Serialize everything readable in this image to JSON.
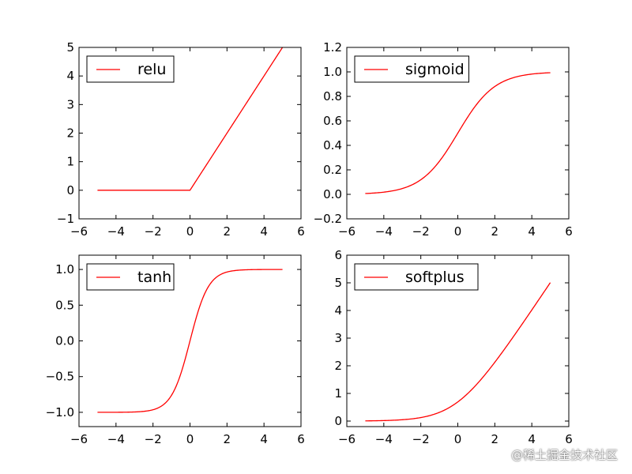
{
  "colors": {
    "line": "#ff0000",
    "axis": "#000000",
    "background": "#ffffff"
  },
  "watermark": "@稀土掘金技术社区",
  "chart_data": [
    {
      "type": "line",
      "function": "relu",
      "title": "",
      "xlabel": "",
      "ylabel": "",
      "xlim": [
        -6,
        6
      ],
      "ylim": [
        -1,
        5
      ],
      "xticks": [
        -6,
        -4,
        -2,
        0,
        2,
        4,
        6
      ],
      "xtick_labels": [
        "−6",
        "−4",
        "−2",
        "0",
        "2",
        "4",
        "6"
      ],
      "yticks": [
        -1,
        0,
        1,
        2,
        3,
        4,
        5
      ],
      "ytick_labels": [
        "−1",
        "0",
        "1",
        "2",
        "3",
        "4",
        "5"
      ],
      "x_range": [
        -5,
        5
      ],
      "series": [
        {
          "name": "relu",
          "x": [
            -5,
            0,
            5
          ],
          "y": [
            0,
            0,
            5
          ]
        }
      ],
      "legend": {
        "label": "relu",
        "position": "upper-left"
      },
      "grid": false
    },
    {
      "type": "line",
      "function": "sigmoid",
      "title": "",
      "xlabel": "",
      "ylabel": "",
      "xlim": [
        -6,
        6
      ],
      "ylim": [
        -0.2,
        1.2
      ],
      "xticks": [
        -6,
        -4,
        -2,
        0,
        2,
        4,
        6
      ],
      "xtick_labels": [
        "−6",
        "−4",
        "−2",
        "0",
        "2",
        "4",
        "6"
      ],
      "yticks": [
        -0.2,
        0.0,
        0.2,
        0.4,
        0.6,
        0.8,
        1.0,
        1.2
      ],
      "ytick_labels": [
        "−0.2",
        "0.0",
        "0.2",
        "0.4",
        "0.6",
        "0.8",
        "1.0",
        "1.2"
      ],
      "x_range": [
        -5,
        5
      ],
      "series": [
        {
          "name": "sigmoid",
          "x": [
            -5,
            -2,
            0,
            2,
            5
          ],
          "y": [
            0.007,
            0.119,
            0.5,
            0.881,
            0.993
          ]
        }
      ],
      "legend": {
        "label": "sigmoid",
        "position": "upper-left"
      },
      "grid": false
    },
    {
      "type": "line",
      "function": "tanh",
      "title": "",
      "xlabel": "",
      "ylabel": "",
      "xlim": [
        -6,
        6
      ],
      "ylim": [
        -1.2,
        1.2
      ],
      "xticks": [
        -6,
        -4,
        -2,
        0,
        2,
        4,
        6
      ],
      "xtick_labels": [
        "−6",
        "−4",
        "−2",
        "0",
        "2",
        "4",
        "6"
      ],
      "yticks": [
        -1.0,
        -0.5,
        0.0,
        0.5,
        1.0
      ],
      "ytick_labels": [
        "−1.0",
        "−0.5",
        "0.0",
        "0.5",
        "1.0"
      ],
      "x_range": [
        -5,
        5
      ],
      "series": [
        {
          "name": "tanh",
          "x": [
            -5,
            -2,
            0,
            2,
            5
          ],
          "y": [
            -1.0,
            -0.964,
            0,
            0.964,
            1.0
          ]
        }
      ],
      "legend": {
        "label": "tanh",
        "position": "upper-left"
      },
      "grid": false
    },
    {
      "type": "line",
      "function": "softplus",
      "title": "",
      "xlabel": "",
      "ylabel": "",
      "xlim": [
        -6,
        6
      ],
      "ylim": [
        -0.2,
        6
      ],
      "xticks": [
        -6,
        -4,
        -2,
        0,
        2,
        4,
        6
      ],
      "xtick_labels": [
        "−6",
        "−4",
        "−2",
        "0",
        "2",
        "4",
        "6"
      ],
      "yticks": [
        0,
        1,
        2,
        3,
        4,
        5,
        6
      ],
      "ytick_labels": [
        "0",
        "1",
        "2",
        "3",
        "4",
        "5",
        "6"
      ],
      "x_range": [
        -5,
        5
      ],
      "series": [
        {
          "name": "softplus",
          "x": [
            -5,
            -2,
            0,
            2,
            5
          ],
          "y": [
            0.007,
            0.127,
            0.693,
            2.127,
            5.007
          ]
        }
      ],
      "legend": {
        "label": "softplus",
        "position": "upper-left"
      },
      "grid": false
    }
  ]
}
